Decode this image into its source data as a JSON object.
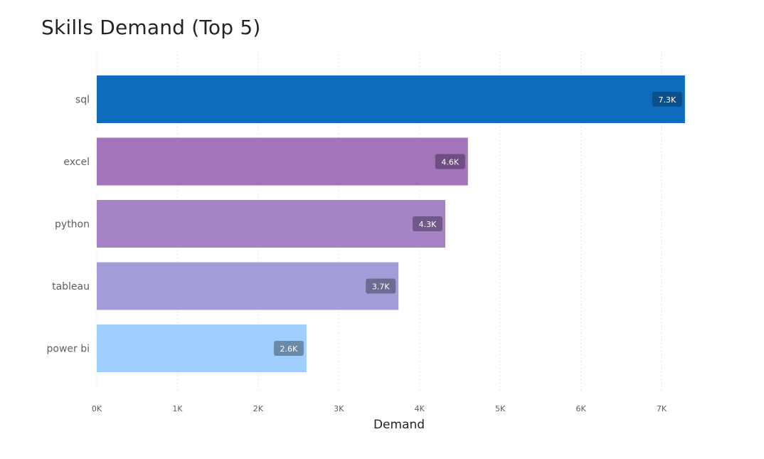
{
  "chart_data": {
    "type": "bar",
    "orientation": "horizontal",
    "title": "Skills Demand (Top 5)",
    "xlabel": "Demand",
    "ylabel": "",
    "categories": [
      "sql",
      "excel",
      "python",
      "tableau",
      "power bi"
    ],
    "values": [
      7290,
      4600,
      4320,
      3740,
      2600
    ],
    "data_labels": [
      "7.3K",
      "4.6K",
      "4.3K",
      "3.7K",
      "2.6K"
    ],
    "colors": [
      "#0F6CBD",
      "#A374B9",
      "#A683C6",
      "#A39DD9",
      "#A0CFFF"
    ],
    "label_bg_colors": [
      "#0B4F8B",
      "#6E4E83",
      "#71588A",
      "#6C6C92",
      "#6B8AA8"
    ],
    "xlim": [
      0,
      7500
    ],
    "xticks": [
      0,
      1000,
      2000,
      3000,
      4000,
      5000,
      6000,
      7000
    ],
    "xtick_labels": [
      "0K",
      "1K",
      "2K",
      "3K",
      "4K",
      "5K",
      "6K",
      "7K"
    ],
    "grid": true
  }
}
